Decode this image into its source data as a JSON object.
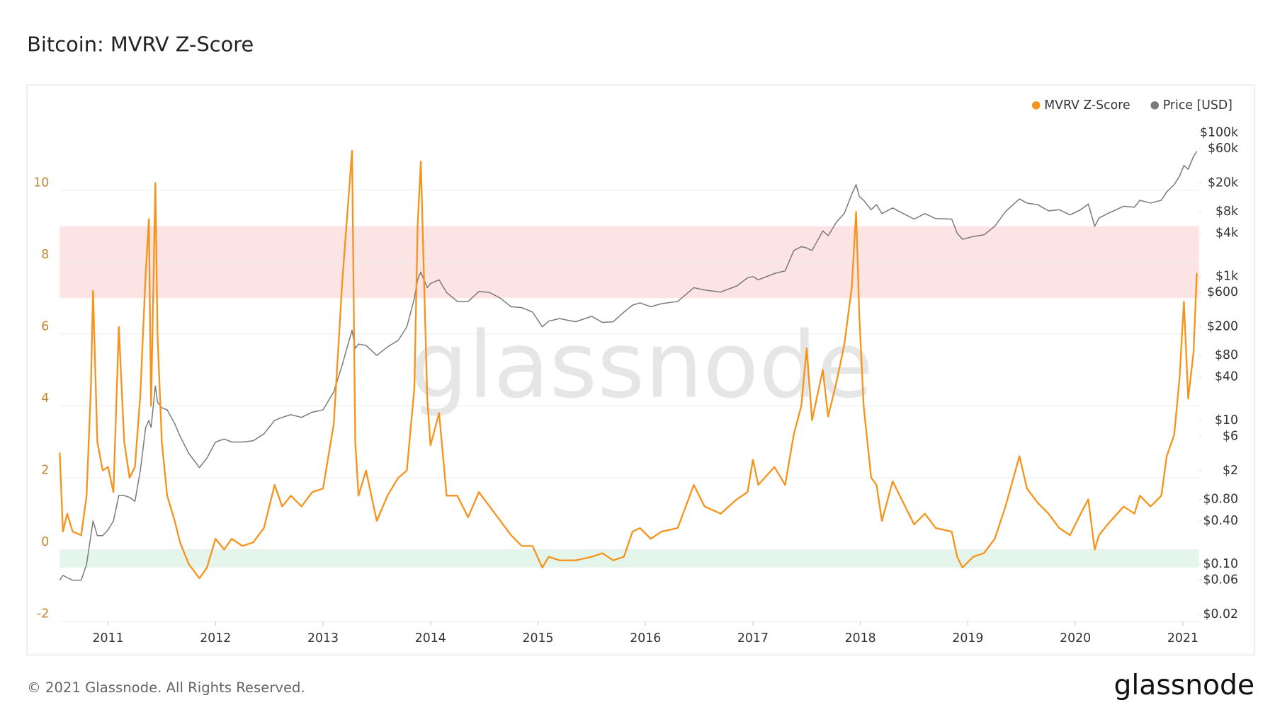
{
  "chart_data": {
    "type": "line",
    "title": "Bitcoin: MVRV Z-Score",
    "watermark": "glassnode",
    "footer": "© 2021 Glassnode. All Rights Reserved.",
    "logo": "glassnode",
    "x": [
      2010.55,
      2010.58,
      2010.62,
      2010.67,
      2010.75,
      2010.8,
      2010.84,
      2010.86,
      2010.9,
      2010.95,
      2011.0,
      2011.05,
      2011.1,
      2011.15,
      2011.2,
      2011.25,
      2011.3,
      2011.35,
      2011.38,
      2011.4,
      2011.44,
      2011.46,
      2011.5,
      2011.55,
      2011.62,
      2011.67,
      2011.75,
      2011.85,
      2011.92,
      2012.0,
      2012.08,
      2012.15,
      2012.25,
      2012.35,
      2012.45,
      2012.55,
      2012.62,
      2012.7,
      2012.8,
      2012.9,
      2013.0,
      2013.1,
      2013.18,
      2013.27,
      2013.3,
      2013.33,
      2013.4,
      2013.5,
      2013.6,
      2013.7,
      2013.78,
      2013.85,
      2013.88,
      2013.91,
      2013.97,
      2014.0,
      2014.08,
      2014.15,
      2014.25,
      2014.35,
      2014.45,
      2014.55,
      2014.65,
      2014.75,
      2014.85,
      2014.95,
      2015.04,
      2015.1,
      2015.2,
      2015.35,
      2015.5,
      2015.6,
      2015.7,
      2015.8,
      2015.88,
      2015.95,
      2016.05,
      2016.15,
      2016.3,
      2016.45,
      2016.55,
      2016.7,
      2016.85,
      2016.95,
      2017.0,
      2017.05,
      2017.2,
      2017.3,
      2017.38,
      2017.45,
      2017.5,
      2017.55,
      2017.65,
      2017.7,
      2017.78,
      2017.85,
      2017.92,
      2017.96,
      2017.99,
      2018.03,
      2018.1,
      2018.15,
      2018.2,
      2018.3,
      2018.4,
      2018.5,
      2018.6,
      2018.7,
      2018.85,
      2018.9,
      2018.95,
      2019.05,
      2019.15,
      2019.25,
      2019.35,
      2019.48,
      2019.55,
      2019.65,
      2019.75,
      2019.85,
      2019.95,
      2020.05,
      2020.12,
      2020.18,
      2020.22,
      2020.3,
      2020.45,
      2020.55,
      2020.6,
      2020.7,
      2020.8,
      2020.85,
      2020.92,
      2020.97,
      2021.01,
      2021.05,
      2021.1,
      2021.13
    ],
    "series": [
      {
        "name": "MVRV Z-Score",
        "color": "#f7931a",
        "axis": "y",
        "values": [
          2.7,
          0.5,
          1.0,
          0.5,
          0.4,
          1.5,
          4.5,
          7.2,
          3,
          2.2,
          2.3,
          1.6,
          6.2,
          3,
          2.0,
          2.3,
          4.3,
          7.7,
          9.2,
          4,
          10.2,
          6,
          3,
          1.5,
          0.8,
          0.2,
          -0.4,
          -0.8,
          -0.5,
          0.3,
          0.0,
          0.3,
          0.1,
          0.2,
          0.6,
          1.8,
          1.2,
          1.5,
          1.2,
          1.6,
          1.7,
          3.5,
          7.5,
          11.1,
          3,
          1.5,
          2.2,
          0.8,
          1.5,
          2.0,
          2.2,
          4.5,
          9,
          10.8,
          4.2,
          2.9,
          3.8,
          1.5,
          1.5,
          0.9,
          1.6,
          1.2,
          0.8,
          0.4,
          0.1,
          0.1,
          -0.5,
          -0.2,
          -0.3,
          -0.3,
          -0.2,
          -0.1,
          -0.3,
          -0.2,
          0.5,
          0.6,
          0.3,
          0.5,
          0.6,
          1.8,
          1.2,
          1.0,
          1.4,
          1.6,
          2.5,
          1.8,
          2.3,
          1.8,
          3.2,
          4.0,
          5.6,
          3.6,
          5.0,
          3.7,
          4.7,
          5.7,
          7.3,
          9.4,
          6.5,
          4.0,
          2.0,
          1.8,
          0.8,
          1.9,
          1.3,
          0.7,
          1.0,
          0.6,
          0.5,
          -0.2,
          -0.5,
          -0.2,
          -0.1,
          0.3,
          1.2,
          2.6,
          1.7,
          1.3,
          1.0,
          0.6,
          0.4,
          1.0,
          1.4,
          0.0,
          0.4,
          0.7,
          1.2,
          1.0,
          1.5,
          1.2,
          1.5,
          2.6,
          3.2,
          4.8,
          6.9,
          4.2,
          5.5,
          7.7
        ]
      },
      {
        "name": "Price [USD]",
        "color": "#7a7a7a",
        "axis": "y2",
        "values": [
          0.06,
          0.07,
          0.065,
          0.06,
          0.06,
          0.1,
          0.25,
          0.4,
          0.25,
          0.25,
          0.3,
          0.4,
          0.9,
          0.9,
          0.85,
          0.75,
          2,
          8,
          10,
          8,
          30,
          18,
          15,
          14,
          9,
          6,
          3.5,
          2.2,
          3,
          5,
          5.5,
          5,
          5,
          5.2,
          6.5,
          10,
          11,
          12,
          11,
          13,
          14,
          25,
          60,
          180,
          100,
          115,
          110,
          80,
          105,
          130,
          200,
          500,
          900,
          1150,
          700,
          800,
          900,
          600,
          450,
          450,
          620,
          600,
          500,
          380,
          370,
          320,
          200,
          240,
          260,
          235,
          280,
          230,
          235,
          320,
          400,
          430,
          380,
          420,
          450,
          700,
          650,
          610,
          740,
          960,
          1000,
          900,
          1100,
          1200,
          2300,
          2600,
          2500,
          2300,
          4300,
          3700,
          5800,
          7500,
          14000,
          19000,
          13000,
          11500,
          8500,
          10000,
          7500,
          9000,
          7500,
          6300,
          7500,
          6400,
          6300,
          4000,
          3300,
          3600,
          3800,
          5000,
          8000,
          12000,
          10500,
          10000,
          8200,
          8500,
          7200,
          8500,
          10200,
          5000,
          6500,
          7500,
          9500,
          9200,
          11500,
          10500,
          11500,
          15000,
          19000,
          25000,
          35000,
          31000,
          47000,
          55000
        ]
      }
    ],
    "bands": [
      {
        "from": 7,
        "to": 9,
        "color": "#fde4e4"
      },
      {
        "from": -0.5,
        "to": 0,
        "color": "#e4f6ec"
      }
    ],
    "xlim": [
      2010.55,
      2021.15
    ],
    "xticks": [
      2011,
      2012,
      2013,
      2014,
      2015,
      2016,
      2017,
      2018,
      2019,
      2020,
      2021
    ],
    "ylim": [
      -2,
      12
    ],
    "yticks": [
      -2,
      0,
      2,
      4,
      6,
      8,
      10
    ],
    "y2lim": [
      0.016,
      158000
    ],
    "y2log": true,
    "y2ticks": [
      {
        "value": 0.02,
        "label": "$0.02"
      },
      {
        "value": 0.06,
        "label": "$0.06"
      },
      {
        "value": 0.1,
        "label": "$0.10"
      },
      {
        "value": 0.4,
        "label": "$0.40"
      },
      {
        "value": 0.8,
        "label": "$0.80"
      },
      {
        "value": 2,
        "label": "$2"
      },
      {
        "value": 6,
        "label": "$6"
      },
      {
        "value": 10,
        "label": "$10"
      },
      {
        "value": 40,
        "label": "$40"
      },
      {
        "value": 80,
        "label": "$80"
      },
      {
        "value": 200,
        "label": "$200"
      },
      {
        "value": 600,
        "label": "$600"
      },
      {
        "value": 1000,
        "label": "$1k"
      },
      {
        "value": 4000,
        "label": "$4k"
      },
      {
        "value": 8000,
        "label": "$8k"
      },
      {
        "value": 20000,
        "label": "$20k"
      },
      {
        "value": 60000,
        "label": "$60k"
      },
      {
        "value": 100000,
        "label": "$100k"
      }
    ],
    "grid": true,
    "legend": "top-right"
  }
}
